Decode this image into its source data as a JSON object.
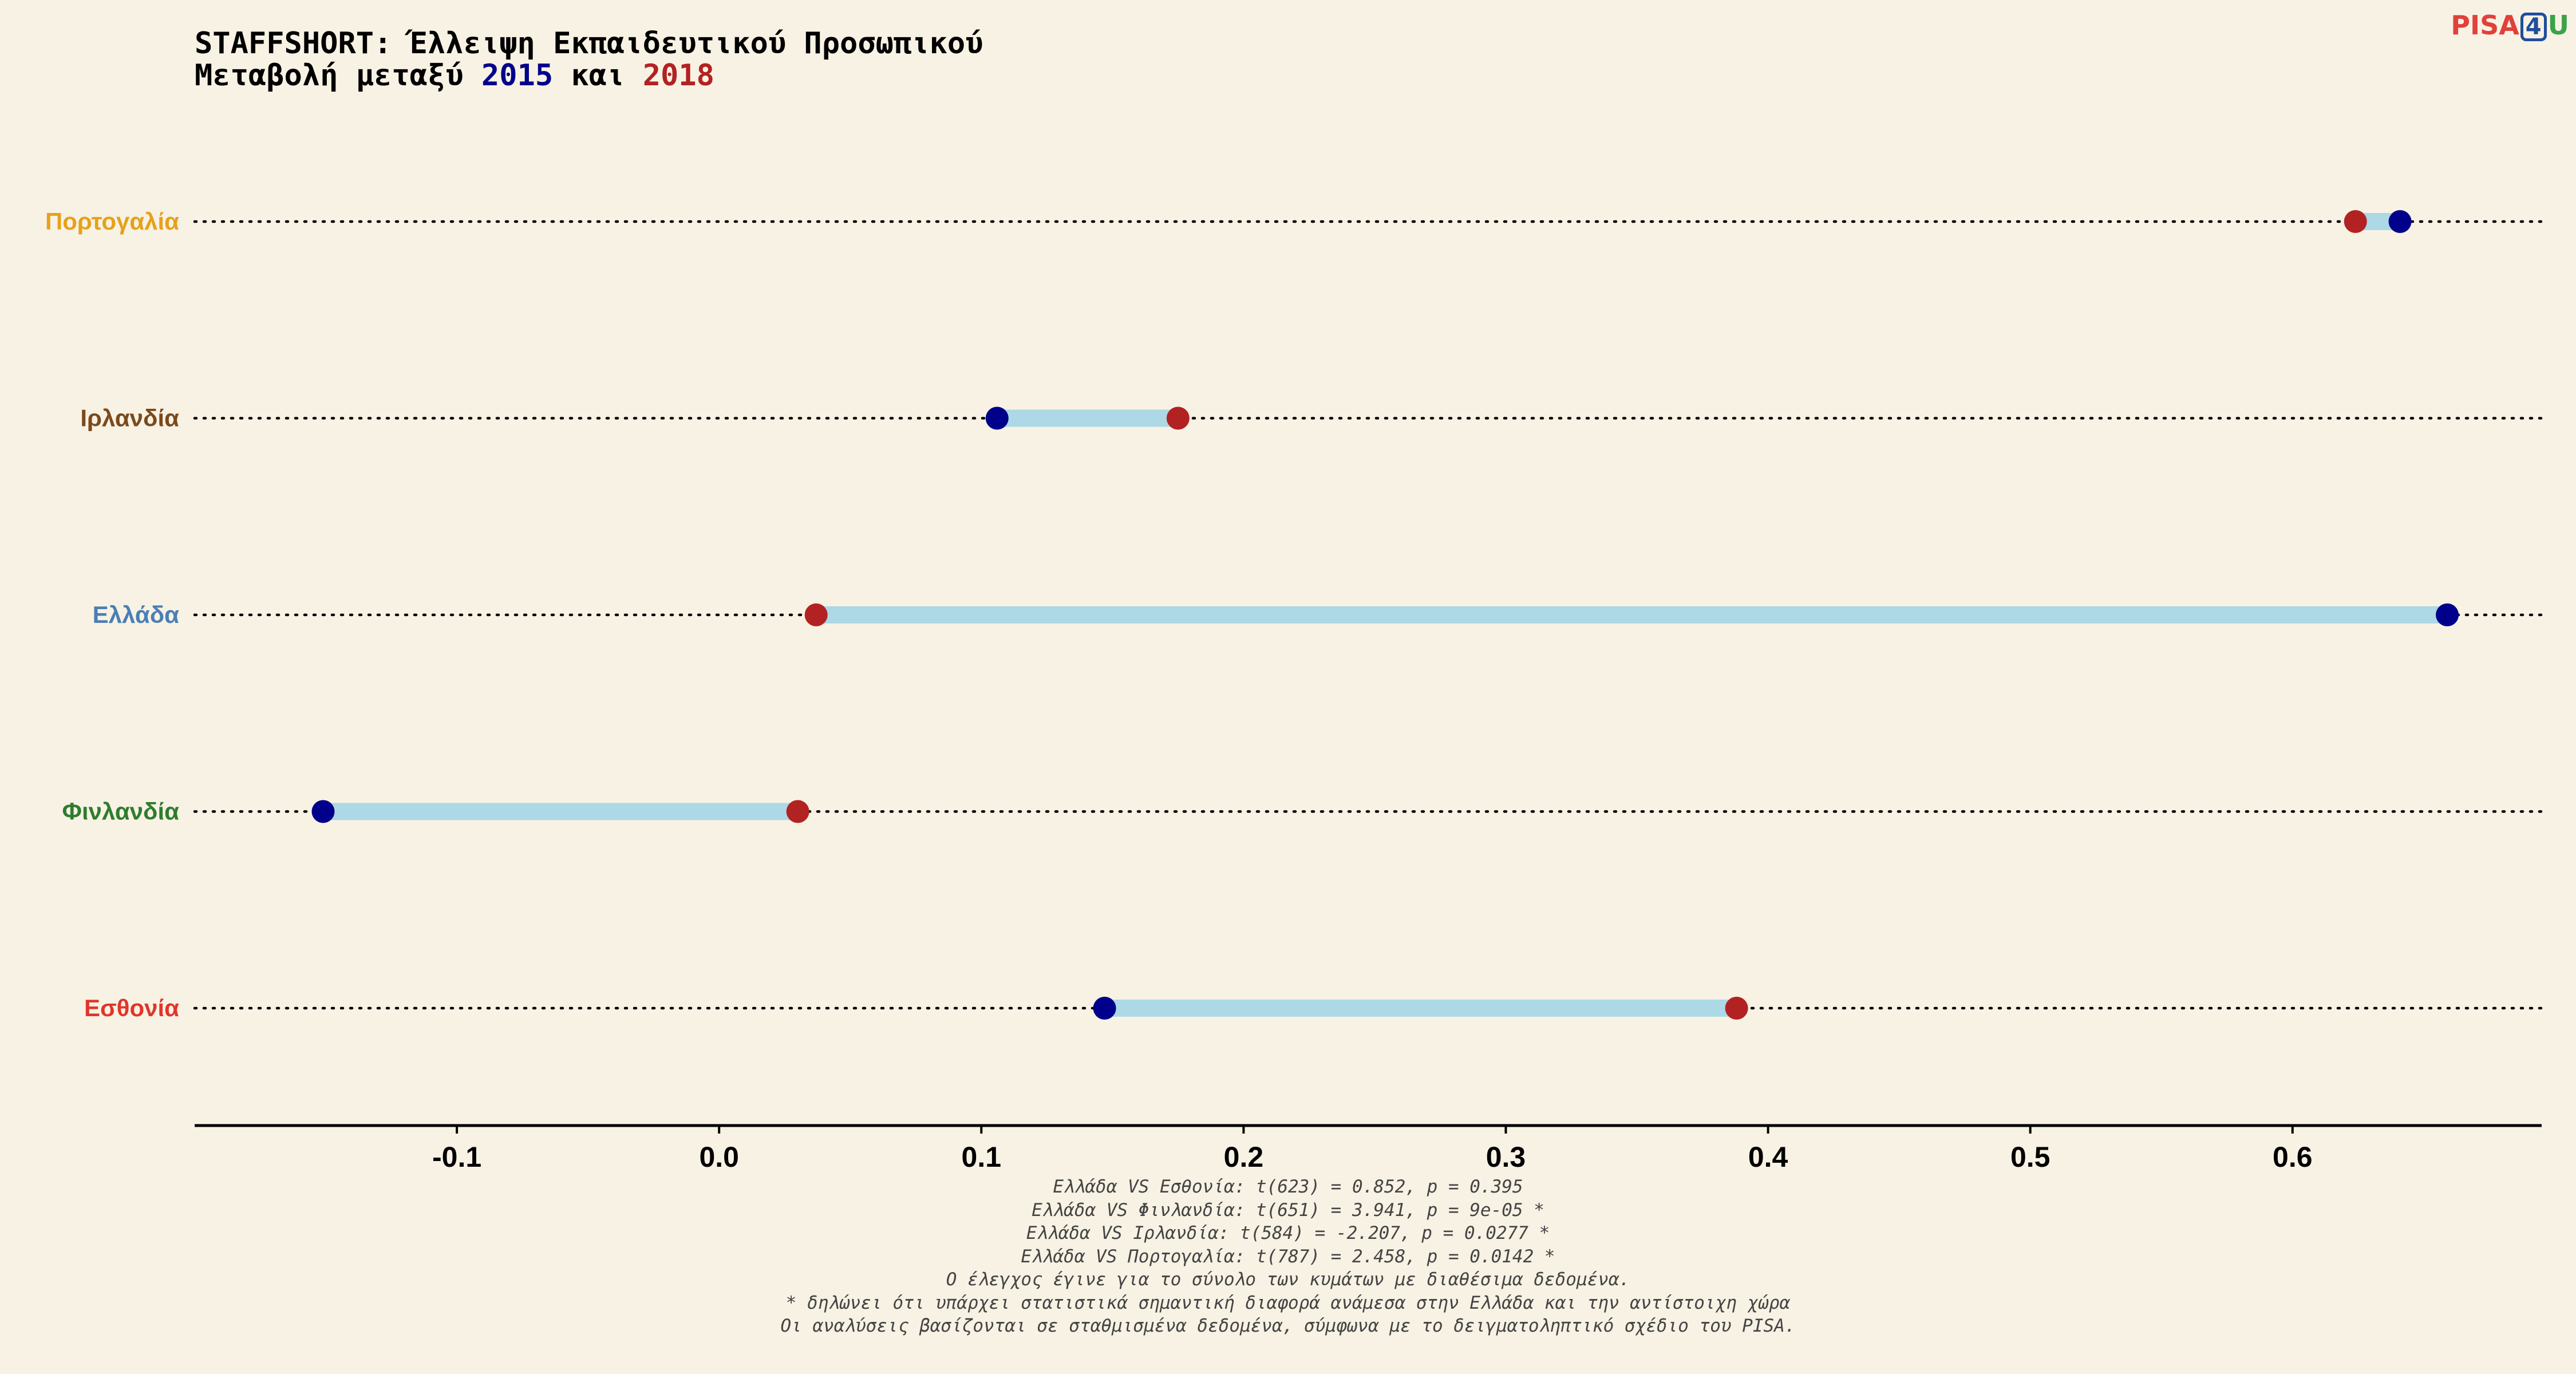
{
  "title": {
    "line1": "STAFFSHORT: Έλλειψη Εκπαιδευτικού Προσωπικού",
    "line2_prefix": "Μεταβολή μεταξύ ",
    "year1": "2015",
    "line2_mid": " και ",
    "year2": "2018"
  },
  "logo": {
    "pisa": "PISA",
    "four": "4",
    "u": "U"
  },
  "colors": {
    "background": "#f8f2e4",
    "year_2015": "#00008b",
    "year_2018": "#b22222",
    "segment": "#add8e6",
    "Πορτογαλία": "#e6a11b",
    "Ιρλανδία": "#7a4a1c",
    "Ελλάδα": "#4a7fb5",
    "Φινλανδία": "#2e7d2e",
    "Εσθονία": "#e0362b"
  },
  "chart_data": {
    "type": "dumbbell",
    "xlim": [
      -0.2,
      0.695
    ],
    "x_ticks": [
      -0.1,
      0.0,
      0.1,
      0.2,
      0.3,
      0.4,
      0.5,
      0.6
    ],
    "x_tick_labels": [
      "-0.1",
      "0.0",
      "0.1",
      "0.2",
      "0.3",
      "0.4",
      "0.5",
      "0.6"
    ],
    "grid": false,
    "categories": [
      "Πορτογαλία",
      "Ιρλανδία",
      "Ελλάδα",
      "Φινλανδία",
      "Εσθονία"
    ],
    "series": [
      {
        "name": "2015",
        "values": [
          0.641,
          0.106,
          0.659,
          -0.151,
          0.147
        ]
      },
      {
        "name": "2018",
        "values": [
          0.624,
          0.175,
          0.037,
          0.03,
          0.388
        ]
      }
    ]
  },
  "notes": [
    "Ελλάδα VS Εσθονία: t(623) = 0.852, p = 0.395",
    "Ελλάδα VS Φινλανδία: t(651) = 3.941, p = 9e-05 *",
    "Ελλάδα VS Ιρλανδία: t(584) = -2.207, p = 0.0277 *",
    "Ελλάδα VS Πορτογαλία: t(787) = 2.458, p = 0.0142 *",
    "Ο έλεγχος έγινε για το σύνολο των κυμάτων με διαθέσιμα δεδομένα.",
    "* δηλώνει ότι υπάρχει στατιστικά σημαντική διαφορά ανάμεσα στην Ελλάδα και την αντίστοιχη χώρα",
    "Οι αναλύσεις βασίζονται σε σταθμισμένα δεδομένα, σύμφωνα με το δειγματοληπτικό σχέδιο του PISA."
  ]
}
